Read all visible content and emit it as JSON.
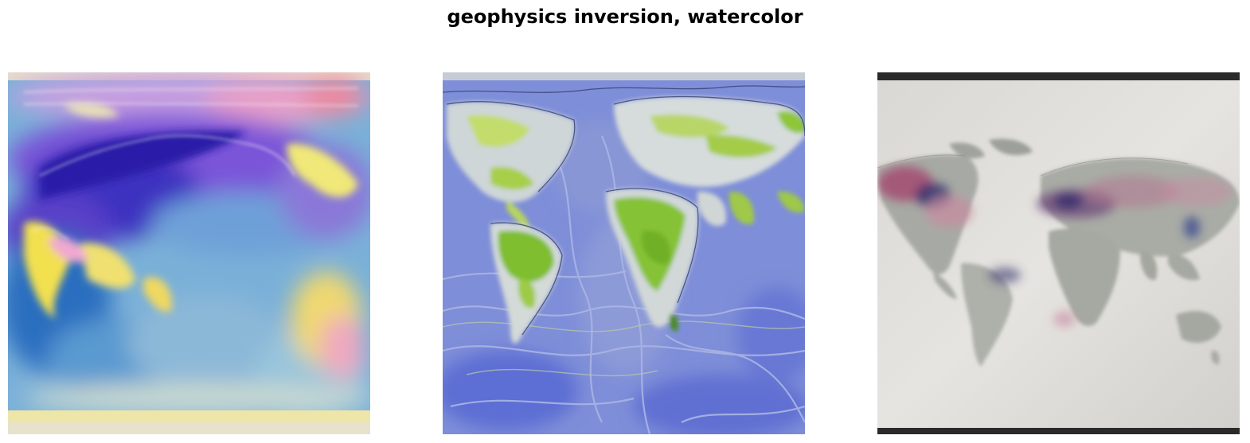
{
  "figure": {
    "title": "geophysics inversion, watercolor"
  },
  "panels": [
    {
      "subject": "world map painted in watercolor",
      "palette": [
        "#6a3fd4",
        "#2d2ab8",
        "#4f8fd0",
        "#f0e060",
        "#f2b0d0",
        "#e8dcc8"
      ]
    },
    {
      "subject": "world map painted in watercolor",
      "palette": [
        "#6f7fd8",
        "#8fc23a",
        "#d8dcdc",
        "#3a4a78"
      ]
    },
    {
      "subject": "world map painted in watercolor",
      "palette": [
        "#e2e0dc",
        "#a9aca6",
        "#b86a86",
        "#3c3a78",
        "#2a2a2a"
      ]
    }
  ]
}
